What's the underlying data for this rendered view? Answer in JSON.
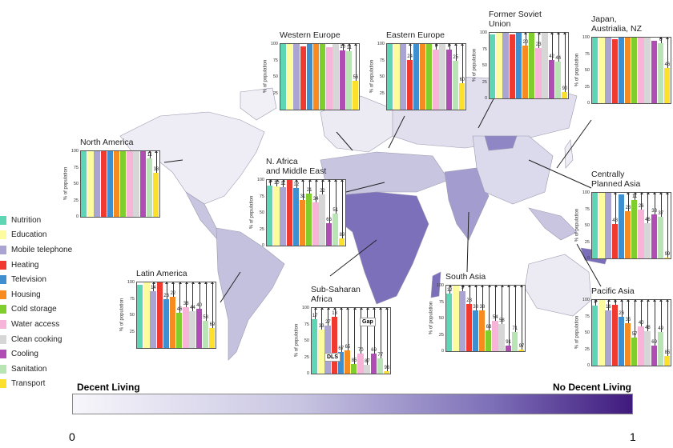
{
  "legend": [
    {
      "label": "Nutrition",
      "color": "#5ed6b5"
    },
    {
      "label": "Education",
      "color": "#fcfb9e"
    },
    {
      "label": "Mobile telephone",
      "color": "#a9a4d1"
    },
    {
      "label": "Heating",
      "color": "#f0392f"
    },
    {
      "label": "Television",
      "color": "#3d8fd0"
    },
    {
      "label": "Housing",
      "color": "#f88b1f"
    },
    {
      "label": "Cold storage",
      "color": "#80ce2d"
    },
    {
      "label": "Water access",
      "color": "#f7b3d8"
    },
    {
      "label": "Clean cooking",
      "color": "#d6d6d6"
    },
    {
      "label": "Cooling",
      "color": "#b04db5"
    },
    {
      "label": "Sanitation",
      "color": "#b8e5b3"
    },
    {
      "label": "Transport",
      "color": "#fde02b"
    }
  ],
  "chart_data": [
    {
      "type": "bar",
      "title": "Western Europe",
      "ylabel": "% of population",
      "ylim": [
        0,
        100
      ],
      "yticks": [
        "100",
        "75",
        "50",
        "25"
      ],
      "values": [
        100,
        100,
        100,
        96,
        100,
        100,
        100,
        95,
        100,
        90,
        89,
        44
      ],
      "gaps": [
        null,
        null,
        null,
        null,
        null,
        null,
        null,
        null,
        null,
        "10",
        "11",
        "56"
      ]
    },
    {
      "type": "bar",
      "title": "Eastern Europe",
      "ylabel": "% of population",
      "ylim": [
        0,
        100
      ],
      "yticks": [
        "100",
        "75",
        "50",
        "25"
      ],
      "values": [
        100,
        100,
        100,
        76,
        100,
        100,
        100,
        91,
        100,
        92,
        75,
        40
      ],
      "gaps": [
        null,
        null,
        null,
        "24",
        null,
        null,
        null,
        "9",
        null,
        "8",
        "25",
        "60"
      ]
    },
    {
      "type": "bar",
      "title": "Former Soviet\nUnion",
      "ylabel": "% of population",
      "ylim": [
        0,
        100
      ],
      "yticks": [
        "100",
        "75",
        "50",
        "25",
        "0"
      ],
      "values": [
        98,
        100,
        100,
        97,
        100,
        80,
        100,
        77,
        100,
        58,
        56,
        10
      ],
      "gaps": [
        null,
        null,
        null,
        null,
        null,
        "20",
        null,
        "23",
        null,
        "42",
        "44",
        "90"
      ]
    },
    {
      "type": "bar",
      "title": "Japan,\nAustrialia, NZ",
      "ylabel": "% of population",
      "ylim": [
        0,
        100
      ],
      "yticks": [
        "100",
        "75",
        "50",
        "25",
        "0"
      ],
      "values": [
        100,
        100,
        100,
        97,
        100,
        100,
        100,
        100,
        100,
        95,
        92,
        54
      ],
      "gaps": [
        null,
        null,
        null,
        null,
        null,
        null,
        null,
        null,
        null,
        null,
        "8",
        "46"
      ]
    },
    {
      "type": "bar",
      "title": "North America",
      "ylabel": "% of population",
      "ylim": [
        0,
        100
      ],
      "yticks": [
        "100",
        "75",
        "50",
        "25",
        "0"
      ],
      "values": [
        100,
        100,
        100,
        100,
        100,
        100,
        100,
        100,
        100,
        100,
        89,
        67
      ],
      "gaps": [
        null,
        null,
        null,
        null,
        null,
        null,
        null,
        null,
        null,
        null,
        "11",
        "33"
      ]
    },
    {
      "type": "bar",
      "title": "N. Africa\nand Middle East",
      "ylabel": "% of population",
      "ylim": [
        0,
        100
      ],
      "yticks": [
        "100",
        "75",
        "50",
        "25",
        "0"
      ],
      "values": [
        92,
        90,
        89,
        100,
        88,
        69,
        79,
        66,
        78,
        34,
        49,
        11
      ],
      "gaps": [
        "8",
        "10",
        "11",
        null,
        "12",
        "31",
        "21",
        "34",
        "22",
        "66",
        "51",
        "89"
      ]
    },
    {
      "type": "bar",
      "title": "Centrally\nPlanned Asia",
      "ylabel": "% of population",
      "ylim": [
        0,
        100
      ],
      "yticks": [
        "100",
        "75",
        "50",
        "25",
        "0"
      ],
      "values": [
        100,
        100,
        100,
        52,
        97,
        72,
        89,
        74,
        54,
        67,
        63,
        1
      ],
      "gaps": [
        null,
        null,
        null,
        "48",
        null,
        "28",
        "11",
        "26",
        "46",
        "33",
        "37",
        "99"
      ]
    },
    {
      "type": "bar",
      "title": "Latin America",
      "ylabel": "% of population",
      "ylim": [
        0,
        100
      ],
      "yticks": [
        "100",
        "75",
        "50",
        "25"
      ],
      "values": [
        96,
        100,
        86,
        100,
        74,
        78,
        54,
        62,
        56,
        60,
        42,
        31
      ],
      "gaps": [
        null,
        null,
        "14",
        null,
        "26",
        "22",
        "46",
        "38",
        "44",
        "40",
        "58",
        "69"
      ]
    },
    {
      "type": "bar",
      "title": "Sub-Saharan\nAfrica",
      "ylabel": "% of population",
      "ylim": [
        0,
        100
      ],
      "yticks": [
        "100",
        "75",
        "50",
        "25",
        "0"
      ],
      "values": [
        83,
        67,
        73,
        87,
        33,
        35,
        15,
        30,
        13,
        31,
        23,
        4
      ],
      "gaps": [
        "17",
        "33",
        "27",
        "13",
        "67",
        "65",
        "85",
        "70",
        "87",
        "69",
        "77",
        "96"
      ],
      "annotations": [
        "Gap",
        "DLS"
      ]
    },
    {
      "type": "bar",
      "title": "South Asia",
      "ylabel": "% of population",
      "ylim": [
        0,
        100
      ],
      "yticks": [
        "100",
        "75",
        "50",
        "25",
        "0"
      ],
      "values": [
        88,
        100,
        91,
        72,
        62,
        62,
        32,
        46,
        42,
        9,
        29,
        3
      ],
      "gaps": [
        "12",
        null,
        "9",
        "28",
        "38",
        "38",
        "68",
        "54",
        "58",
        "91",
        "71",
        "97"
      ]
    },
    {
      "type": "bar",
      "title": "Pacific Asia",
      "ylabel": "% of population",
      "ylim": [
        0,
        100
      ],
      "yticks": [
        "100",
        "75",
        "50",
        "25",
        "0"
      ],
      "values": [
        92,
        100,
        84,
        93,
        74,
        65,
        43,
        60,
        52,
        31,
        51,
        15
      ],
      "gaps": [
        "8",
        null,
        "16",
        "7",
        "26",
        "35",
        "57",
        "40",
        "48",
        "69",
        "49",
        "85"
      ]
    }
  ],
  "scale": {
    "left_label": "Decent Living",
    "right_label": "No Decent Living",
    "min": "0",
    "max": "1",
    "color_low": "#f7f6fb",
    "color_high": "#3f1a7d"
  }
}
